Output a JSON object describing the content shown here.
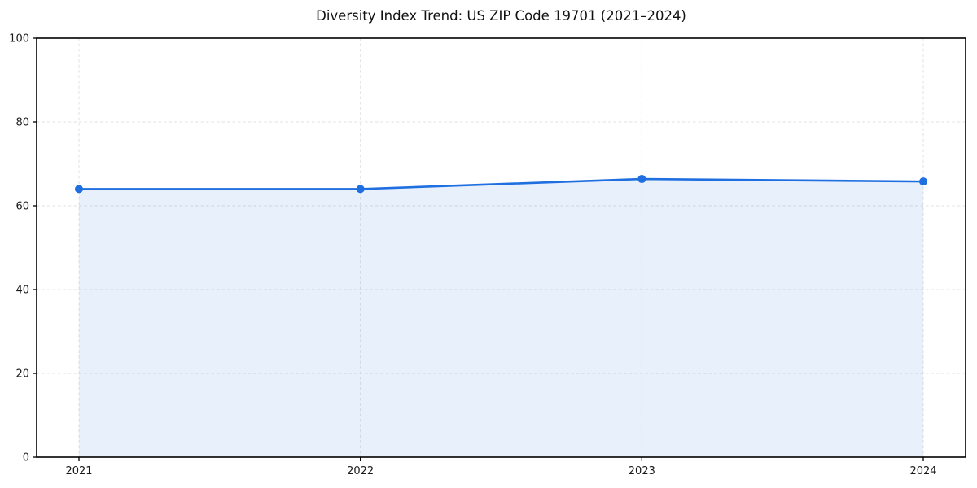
{
  "page": {
    "background_color": "#ffffff"
  },
  "chart_data": {
    "type": "area",
    "title": "Diversity Index Trend: US ZIP Code 19701 (2021–2024)",
    "categories": [
      "2021",
      "2022",
      "2023",
      "2024"
    ],
    "series": [
      {
        "name": "Diversity Index",
        "values": [
          64.0,
          64.0,
          66.4,
          65.8
        ]
      }
    ],
    "xlabel": "",
    "ylabel": "",
    "ylim": [
      0,
      100
    ],
    "yticks": [
      0,
      20,
      40,
      60,
      80,
      100
    ],
    "grid": "dashed",
    "legend_position": "none",
    "colors": {
      "line": "#1f6fe0",
      "marker": "#1f6fe0",
      "fill": "#1f6fe0",
      "fill_opacity": 0.1,
      "grid": "#e1e1e1",
      "axis": "#000000",
      "text": "#1a1a1a"
    }
  }
}
